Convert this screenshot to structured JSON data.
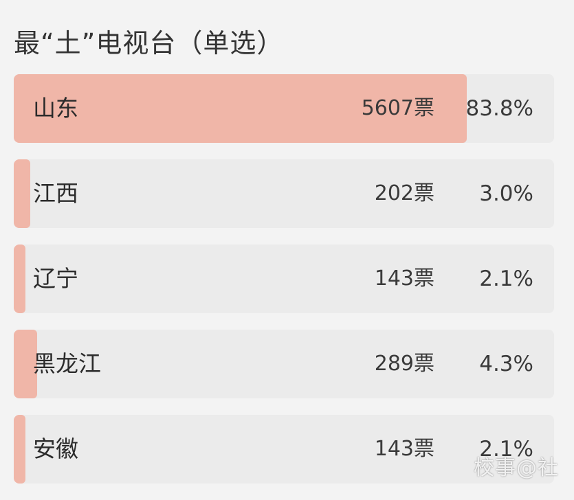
{
  "poll": {
    "title": "最“土”电视台（单选）",
    "accent_color": "#f0b6a8",
    "options": [
      {
        "label": "山东",
        "votes": "5607票",
        "percent": "83.8%",
        "fraction": 0.838
      },
      {
        "label": "江西",
        "votes": "202票",
        "percent": "3.0%",
        "fraction": 0.03
      },
      {
        "label": "辽宁",
        "votes": "143票",
        "percent": "2.1%",
        "fraction": 0.021
      },
      {
        "label": "黑龙江",
        "votes": "289票",
        "percent": "4.3%",
        "fraction": 0.043
      },
      {
        "label": "安徽",
        "votes": "143票",
        "percent": "2.1%",
        "fraction": 0.021
      }
    ]
  },
  "watermark": {
    "text": "校事@社"
  }
}
